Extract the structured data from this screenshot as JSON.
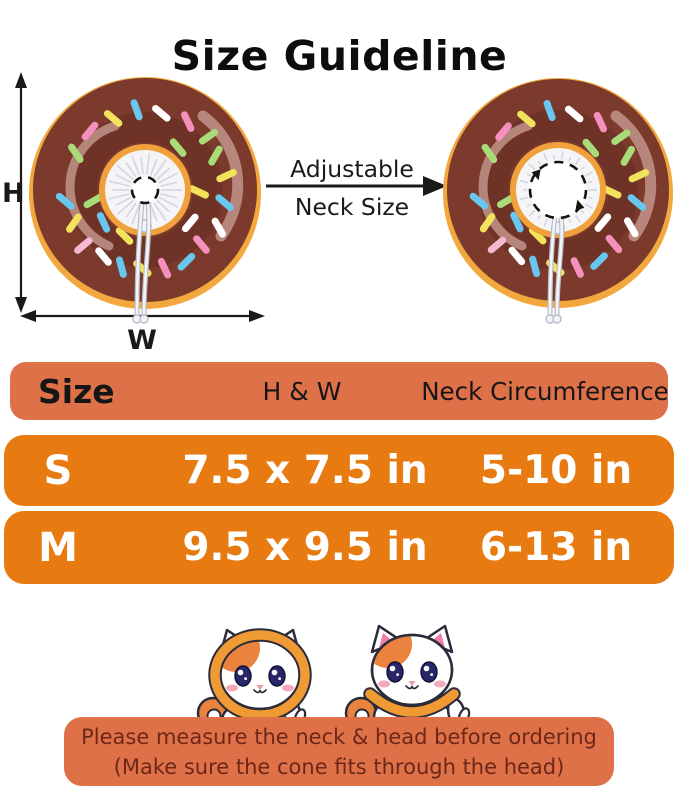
{
  "title": "Size Guideline",
  "diagram": {
    "height_label": "H",
    "width_label": "W",
    "arrow_label_top": "Adjustable",
    "arrow_label_bottom": "Neck Size"
  },
  "table": {
    "header": {
      "size": "Size",
      "hw": "H & W",
      "neck": "Neck Circumference"
    },
    "rows": [
      {
        "size": "S",
        "hw": "7.5 x 7.5 in",
        "neck": "5-10 in"
      },
      {
        "size": "M",
        "hw": "9.5 x 9.5 in",
        "neck": "6-13 in"
      }
    ]
  },
  "note": {
    "line1": "Please measure the neck & head before ordering",
    "line2": "(Make sure the cone fits through the head)"
  },
  "colors": {
    "title_text": "#0d0d0d",
    "arrow_color": "#1a1a1a",
    "header_bg": "#df7149",
    "header_text": "#161616",
    "row_bg": "#e77b12",
    "row_text": "#ffffff",
    "note_bg": "#df7149",
    "note_text": "#6d2718",
    "donut_icing": "#7b3a2c",
    "donut_icing_shadow": "#5d2a1f",
    "donut_gloss": "#c79a91",
    "donut_dough": "#f2a83e",
    "donut_hole_ring": "#f0a13b",
    "fabric": "#f5f5f8",
    "fabric_line": "#d4d5de",
    "cord": "#b9bdc9",
    "cord_light": "#f3f4f8",
    "dash_stroke": "#14140e",
    "sprinkle_yellow": "#f3e35c",
    "sprinkle_pink": "#f590be",
    "sprinkle_blue": "#68c7ef",
    "sprinkle_white": "#ffffff",
    "sprinkle_green": "#a9dc78",
    "sprinkle_lightpink": "#f4b8d1",
    "cat_outline": "#2b2b3a",
    "cat_white": "#ffffff",
    "cat_patch": "#e9833d",
    "cat_ring": "#f09a35",
    "cat_inner_ear": "#f07fa8",
    "cat_eye": "#272769",
    "cat_blush": "#f5a9bc",
    "cat_nose": "#e89ba6"
  }
}
